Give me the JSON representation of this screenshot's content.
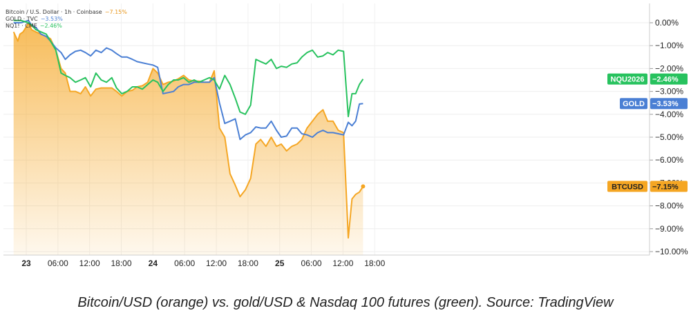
{
  "legend": [
    {
      "name": "Bitcoin / U.S. Dollar · 1h · Coinbase",
      "change": "−7.15%",
      "color": "#f5a623"
    },
    {
      "name": "GOLD · TVC",
      "change": "−3.53%",
      "color": "#4a7fd4"
    },
    {
      "name": "NQ1! · CME",
      "change": "−2.46%",
      "color": "#27c25e"
    }
  ],
  "caption": "Bitcoin/USD (orange) vs. gold/USD & Nasdaq 100 futures (green). Source: TradingView",
  "chart_data": {
    "type": "line",
    "ylim": [
      -10,
      0
    ],
    "y_ticks": [
      "0.00%",
      "−1.00%",
      "−2.00%",
      "−3.00%",
      "−4.00%",
      "−5.00%",
      "−6.00%",
      "−7.00%",
      "−8.00%",
      "−9.00%",
      "−10.00%"
    ],
    "x_ticks": [
      {
        "label": "23",
        "bold": true,
        "t": 0
      },
      {
        "label": "06:00",
        "bold": false,
        "t": 6
      },
      {
        "label": "12:00",
        "bold": false,
        "t": 12
      },
      {
        "label": "18:00",
        "bold": false,
        "t": 18
      },
      {
        "label": "24",
        "bold": true,
        "t": 24
      },
      {
        "label": "06:00",
        "bold": false,
        "t": 30
      },
      {
        "label": "12:00",
        "bold": false,
        "t": 36
      },
      {
        "label": "18:00",
        "bold": false,
        "t": 42
      },
      {
        "label": "25",
        "bold": true,
        "t": 48
      },
      {
        "label": "06:00",
        "bold": false,
        "t": 54
      },
      {
        "label": "12:00",
        "bold": false,
        "t": 60
      },
      {
        "label": "18:00",
        "bold": false,
        "t": 66
      }
    ],
    "series": [
      {
        "name": "BTCUSD",
        "label": "BTCUSD",
        "last_label": "−7.15%",
        "color": "#f5a623",
        "fill": true,
        "values": [
          [
            -2.4,
            -0.4
          ],
          [
            -1.6,
            -0.8
          ],
          [
            -1.2,
            -0.5
          ],
          [
            -0.6,
            -0.4
          ],
          [
            0.5,
            0.0
          ],
          [
            1.0,
            -0.3
          ],
          [
            1.8,
            -0.4
          ],
          [
            2.8,
            -0.5
          ],
          [
            3.8,
            -0.6
          ],
          [
            4.6,
            -0.7
          ],
          [
            5.6,
            -1.2
          ],
          [
            6.6,
            -2.0
          ],
          [
            7.4,
            -2.2
          ],
          [
            8.3,
            -3.0
          ],
          [
            9.3,
            -3.0
          ],
          [
            10.3,
            -3.1
          ],
          [
            11.2,
            -2.8
          ],
          [
            12.2,
            -3.2
          ],
          [
            13.2,
            -2.9
          ],
          [
            14.2,
            -2.85
          ],
          [
            15.2,
            -2.85
          ],
          [
            16.2,
            -2.85
          ],
          [
            17.1,
            -3.0
          ],
          [
            18.1,
            -3.2
          ],
          [
            19.1,
            -3.0
          ],
          [
            20.1,
            -2.95
          ],
          [
            21.0,
            -2.8
          ],
          [
            22.0,
            -2.75
          ],
          [
            23.0,
            -2.6
          ],
          [
            24.0,
            -2.0
          ],
          [
            24.9,
            -2.2
          ],
          [
            25.9,
            -2.7
          ],
          [
            26.9,
            -2.6
          ],
          [
            27.9,
            -2.55
          ],
          [
            28.8,
            -2.45
          ],
          [
            29.8,
            -2.3
          ],
          [
            30.8,
            -2.5
          ],
          [
            31.8,
            -2.55
          ],
          [
            32.7,
            -2.55
          ],
          [
            33.7,
            -2.6
          ],
          [
            34.7,
            -2.6
          ],
          [
            35.6,
            -2.1
          ],
          [
            36.6,
            -4.6
          ],
          [
            37.6,
            -5.0
          ],
          [
            38.6,
            -6.6
          ],
          [
            39.6,
            -7.1
          ],
          [
            40.5,
            -7.6
          ],
          [
            41.5,
            -7.3
          ],
          [
            42.5,
            -6.8
          ],
          [
            43.5,
            -5.3
          ],
          [
            44.4,
            -5.1
          ],
          [
            45.4,
            -5.4
          ],
          [
            46.4,
            -5.0
          ],
          [
            47.4,
            -5.4
          ],
          [
            48.3,
            -5.3
          ],
          [
            49.3,
            -5.6
          ],
          [
            50.3,
            -5.4
          ],
          [
            51.3,
            -5.3
          ],
          [
            52.2,
            -5.1
          ],
          [
            53.2,
            -4.6
          ],
          [
            54.2,
            -4.3
          ],
          [
            55.2,
            -4.0
          ],
          [
            56.2,
            -3.8
          ],
          [
            57.1,
            -4.3
          ],
          [
            58.1,
            -4.3
          ],
          [
            59.1,
            -4.7
          ],
          [
            60.1,
            -4.8
          ],
          [
            61.0,
            -9.4
          ],
          [
            61.7,
            -7.7
          ],
          [
            62.4,
            -7.5
          ],
          [
            63.1,
            -7.4
          ],
          [
            63.8,
            -7.15
          ]
        ]
      },
      {
        "name": "GOLD",
        "label": "GOLD",
        "last_label": "−3.53%",
        "color": "#4a7fd4",
        "fill": false,
        "values": [
          [
            -2.4,
            0.0
          ],
          [
            -1.0,
            0.0
          ],
          [
            0.4,
            0.1
          ],
          [
            1.0,
            -0.1
          ],
          [
            1.8,
            -0.2
          ],
          [
            2.8,
            -0.5
          ],
          [
            3.8,
            -0.6
          ],
          [
            4.6,
            -0.8
          ],
          [
            5.6,
            -1.1
          ],
          [
            6.6,
            -1.3
          ],
          [
            7.4,
            -1.6
          ],
          [
            8.3,
            -1.4
          ],
          [
            9.3,
            -1.25
          ],
          [
            10.3,
            -1.2
          ],
          [
            11.2,
            -1.3
          ],
          [
            12.2,
            -1.45
          ],
          [
            13.2,
            -1.2
          ],
          [
            14.2,
            -1.3
          ],
          [
            15.2,
            -1.1
          ],
          [
            16.2,
            -1.2
          ],
          [
            17.1,
            -1.35
          ],
          [
            18.1,
            -1.5
          ],
          [
            19.1,
            -1.5
          ],
          [
            20.1,
            -1.6
          ],
          [
            21.0,
            -1.7
          ],
          [
            22.0,
            -1.75
          ],
          [
            23.0,
            -1.8
          ],
          [
            24.0,
            -1.85
          ],
          [
            24.9,
            -1.95
          ],
          [
            25.9,
            -3.1
          ],
          [
            26.9,
            -3.05
          ],
          [
            27.9,
            -3.0
          ],
          [
            28.8,
            -2.8
          ],
          [
            29.8,
            -2.7
          ],
          [
            30.8,
            -2.7
          ],
          [
            31.8,
            -2.6
          ],
          [
            32.7,
            -2.6
          ],
          [
            33.7,
            -2.6
          ],
          [
            34.7,
            -2.6
          ],
          [
            35.6,
            -2.4
          ],
          [
            36.6,
            -3.5
          ],
          [
            37.6,
            -4.4
          ],
          [
            38.6,
            -4.3
          ],
          [
            39.6,
            -4.2
          ],
          [
            40.5,
            -5.1
          ],
          [
            41.5,
            -4.9
          ],
          [
            42.5,
            -4.8
          ],
          [
            43.5,
            -4.55
          ],
          [
            44.4,
            -4.6
          ],
          [
            45.4,
            -4.6
          ],
          [
            46.4,
            -4.3
          ],
          [
            47.4,
            -4.7
          ],
          [
            48.3,
            -5.0
          ],
          [
            49.3,
            -4.95
          ],
          [
            50.3,
            -4.6
          ],
          [
            51.3,
            -4.6
          ],
          [
            52.2,
            -4.85
          ],
          [
            53.2,
            -4.9
          ],
          [
            54.2,
            -5.0
          ],
          [
            55.2,
            -4.8
          ],
          [
            56.2,
            -4.7
          ],
          [
            57.1,
            -4.8
          ],
          [
            58.1,
            -4.8
          ],
          [
            59.1,
            -4.85
          ],
          [
            60.1,
            -4.9
          ],
          [
            61.0,
            -4.35
          ],
          [
            61.7,
            -4.5
          ],
          [
            62.4,
            -4.3
          ],
          [
            63.1,
            -3.55
          ],
          [
            63.8,
            -3.53
          ]
        ]
      },
      {
        "name": "NQU2026",
        "label": "NQU2026",
        "last_label": "−2.46%",
        "color": "#27c25e",
        "fill": false,
        "values": [
          [
            -2.4,
            0.1
          ],
          [
            -1.0,
            0.1
          ],
          [
            0.4,
            0.0
          ],
          [
            1.0,
            -0.1
          ],
          [
            1.8,
            -0.3
          ],
          [
            2.8,
            -0.4
          ],
          [
            3.8,
            -0.5
          ],
          [
            4.6,
            -0.8
          ],
          [
            5.6,
            -1.2
          ],
          [
            6.6,
            -2.2
          ],
          [
            7.4,
            -2.3
          ],
          [
            8.3,
            -2.4
          ],
          [
            9.3,
            -2.6
          ],
          [
            10.3,
            -2.5
          ],
          [
            11.2,
            -2.4
          ],
          [
            12.2,
            -2.8
          ],
          [
            13.2,
            -2.2
          ],
          [
            14.2,
            -2.5
          ],
          [
            15.2,
            -2.6
          ],
          [
            16.2,
            -2.4
          ],
          [
            17.1,
            -2.85
          ],
          [
            18.1,
            -3.1
          ],
          [
            19.1,
            -3.0
          ],
          [
            20.1,
            -2.8
          ],
          [
            21.0,
            -2.8
          ],
          [
            22.0,
            -2.9
          ],
          [
            23.0,
            -2.7
          ],
          [
            24.0,
            -2.5
          ],
          [
            24.9,
            -2.6
          ],
          [
            25.9,
            -3.0
          ],
          [
            26.9,
            -2.7
          ],
          [
            27.9,
            -2.5
          ],
          [
            28.8,
            -2.5
          ],
          [
            29.8,
            -2.4
          ],
          [
            30.8,
            -2.6
          ],
          [
            31.8,
            -2.5
          ],
          [
            32.7,
            -2.6
          ],
          [
            33.7,
            -2.5
          ],
          [
            34.7,
            -2.4
          ],
          [
            35.6,
            -2.5
          ],
          [
            36.6,
            -2.9
          ],
          [
            37.6,
            -2.3
          ],
          [
            38.6,
            -2.7
          ],
          [
            39.6,
            -3.3
          ],
          [
            40.5,
            -3.9
          ],
          [
            41.5,
            -4.0
          ],
          [
            42.5,
            -3.6
          ],
          [
            43.5,
            -1.6
          ],
          [
            44.4,
            -1.7
          ],
          [
            45.4,
            -1.8
          ],
          [
            46.4,
            -1.6
          ],
          [
            47.4,
            -2.0
          ],
          [
            48.3,
            -1.9
          ],
          [
            49.3,
            -1.95
          ],
          [
            50.3,
            -1.8
          ],
          [
            51.3,
            -1.75
          ],
          [
            52.2,
            -1.5
          ],
          [
            53.2,
            -1.3
          ],
          [
            54.2,
            -1.2
          ],
          [
            55.2,
            -1.5
          ],
          [
            56.2,
            -1.45
          ],
          [
            57.1,
            -1.3
          ],
          [
            58.1,
            -1.4
          ],
          [
            59.1,
            -1.2
          ],
          [
            60.1,
            -1.25
          ],
          [
            61.0,
            -4.1
          ],
          [
            61.7,
            -3.1
          ],
          [
            62.4,
            -3.1
          ],
          [
            63.1,
            -2.7
          ],
          [
            63.8,
            -2.46
          ]
        ]
      }
    ]
  }
}
